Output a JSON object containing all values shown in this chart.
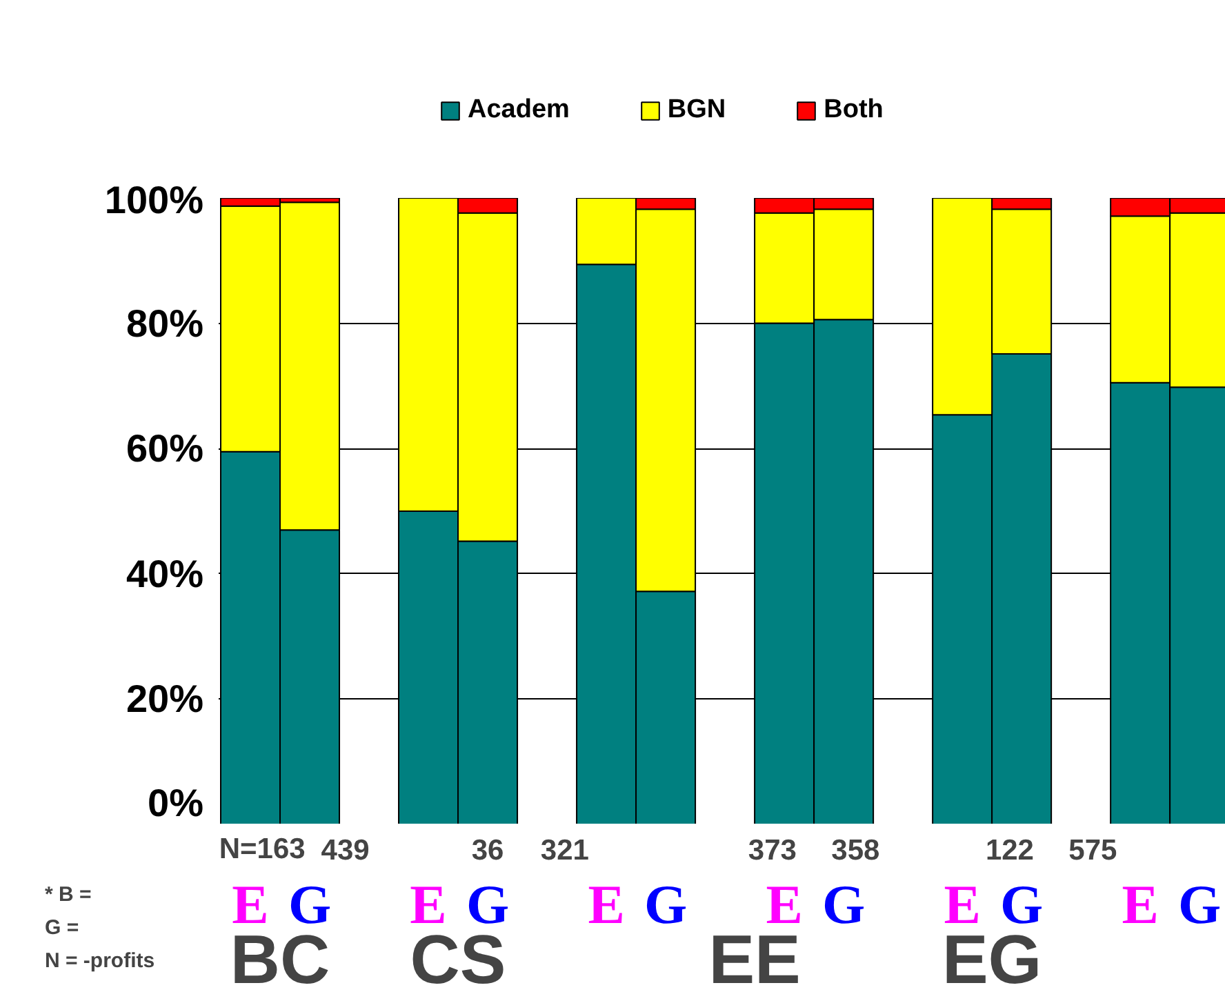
{
  "chart_data": {
    "type": "bar",
    "stacked": true,
    "categories": [
      "E",
      "G",
      null,
      "E",
      "G",
      null,
      "E",
      "G",
      null,
      "E",
      "G",
      null,
      "E",
      "G",
      null,
      "E",
      "G"
    ],
    "series": [
      {
        "name": "Academ",
        "color": "#008080",
        "values": [
          59.5,
          47,
          null,
          50,
          45.2,
          null,
          89.4,
          37.2,
          null,
          80,
          80.6,
          null,
          65.4,
          75.1,
          null,
          70.5,
          69.8
        ]
      },
      {
        "name": "BGN",
        "color": "#ffff00",
        "values": [
          39.2,
          52.3,
          null,
          50,
          52.4,
          null,
          10.6,
          61,
          null,
          17.6,
          17.6,
          null,
          34.6,
          23.1,
          null,
          26.6,
          27.8
        ]
      },
      {
        "name": "Both",
        "color": "#ff0000",
        "values": [
          1.3,
          0.7,
          null,
          0,
          2.4,
          null,
          0,
          1.8,
          null,
          2.4,
          1.8,
          null,
          0,
          1.8,
          null,
          2.9,
          2.4
        ]
      }
    ],
    "ylim": [
      0,
      100
    ],
    "yticks": [
      {
        "value": 0,
        "label": "0%"
      },
      {
        "value": 20,
        "label": "20%"
      },
      {
        "value": 40,
        "label": "40%"
      },
      {
        "value": 60,
        "label": "60%"
      },
      {
        "value": 80,
        "label": "80%"
      },
      {
        "value": 100,
        "label": "100%"
      }
    ],
    "grid": "y",
    "legend": "top",
    "annotations": [
      "N=163",
      "439",
      "36",
      "321",
      "373",
      "358",
      "122",
      "575",
      "BC",
      "CS",
      "EE",
      "EG",
      "* B =",
      "G =",
      "N = -profits"
    ]
  }
}
